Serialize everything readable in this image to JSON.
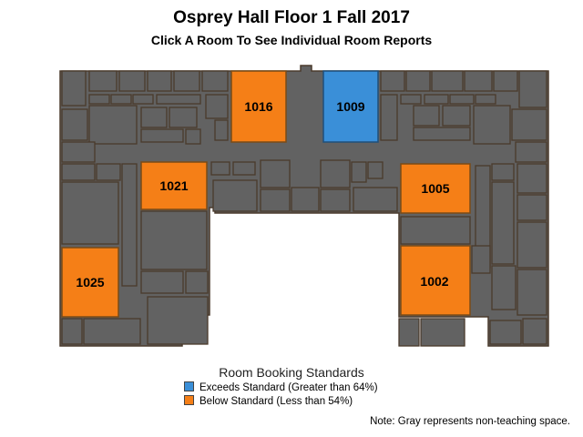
{
  "header": {
    "title": "Osprey Hall Floor 1 Fall 2017",
    "subtitle": "Click A Room To See Individual Room Reports"
  },
  "colors": {
    "exceeds": "#3a8fd8",
    "below": "#f57f17",
    "non_teaching": "#626262",
    "wall": "#4a3a2c"
  },
  "rooms": [
    {
      "id": "1016",
      "status": "below"
    },
    {
      "id": "1009",
      "status": "exceeds"
    },
    {
      "id": "1021",
      "status": "below"
    },
    {
      "id": "1005",
      "status": "below"
    },
    {
      "id": "1025",
      "status": "below"
    },
    {
      "id": "1002",
      "status": "below"
    }
  ],
  "legend": {
    "title": "Room Booking Standards",
    "items": [
      {
        "label": "Exceeds Standard (Greater than 64%)",
        "color_key": "exceeds"
      },
      {
        "label": "Below Standard (Less than 54%)",
        "color_key": "below"
      }
    ]
  },
  "note": "Note: Gray represents non-teaching space."
}
